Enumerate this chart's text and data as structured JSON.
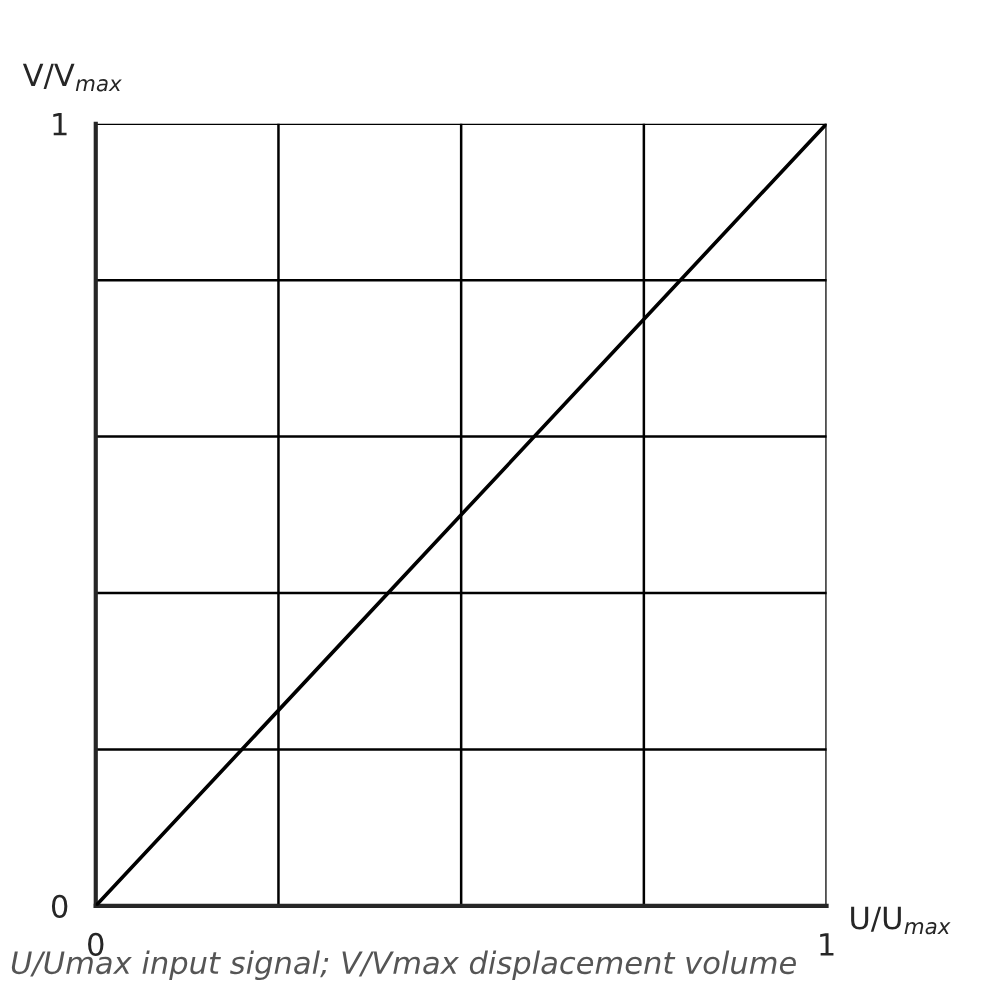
{
  "chart_data": {
    "type": "line",
    "xlabel": "U/U$_{max}$",
    "ylabel": "V/V$_{max}$",
    "annotations": [
      "U/Umax input signal; V/Vmax displacement volume"
    ],
    "x": [
      0,
      1
    ],
    "series": [
      {
        "color": "#000000",
        "values": [
          0,
          1
        ]
      }
    ],
    "xlim": [
      0,
      1
    ],
    "ylim": [
      0,
      1
    ],
    "xticks": [
      0,
      {
        "value": 0.25,
        "label": null
      },
      {
        "value": 0.5,
        "label": null
      },
      {
        "value": 0.75,
        "label": null
      },
      1
    ],
    "yticks": [
      0,
      {
        "value": 0.2,
        "label": null
      },
      {
        "value": 0.4,
        "label": null
      },
      {
        "value": 0.6,
        "label": null
      },
      {
        "value": 0.8,
        "label": null
      },
      1
    ],
    "grid": true,
    "marker": "none",
    "line_style": "solid"
  }
}
